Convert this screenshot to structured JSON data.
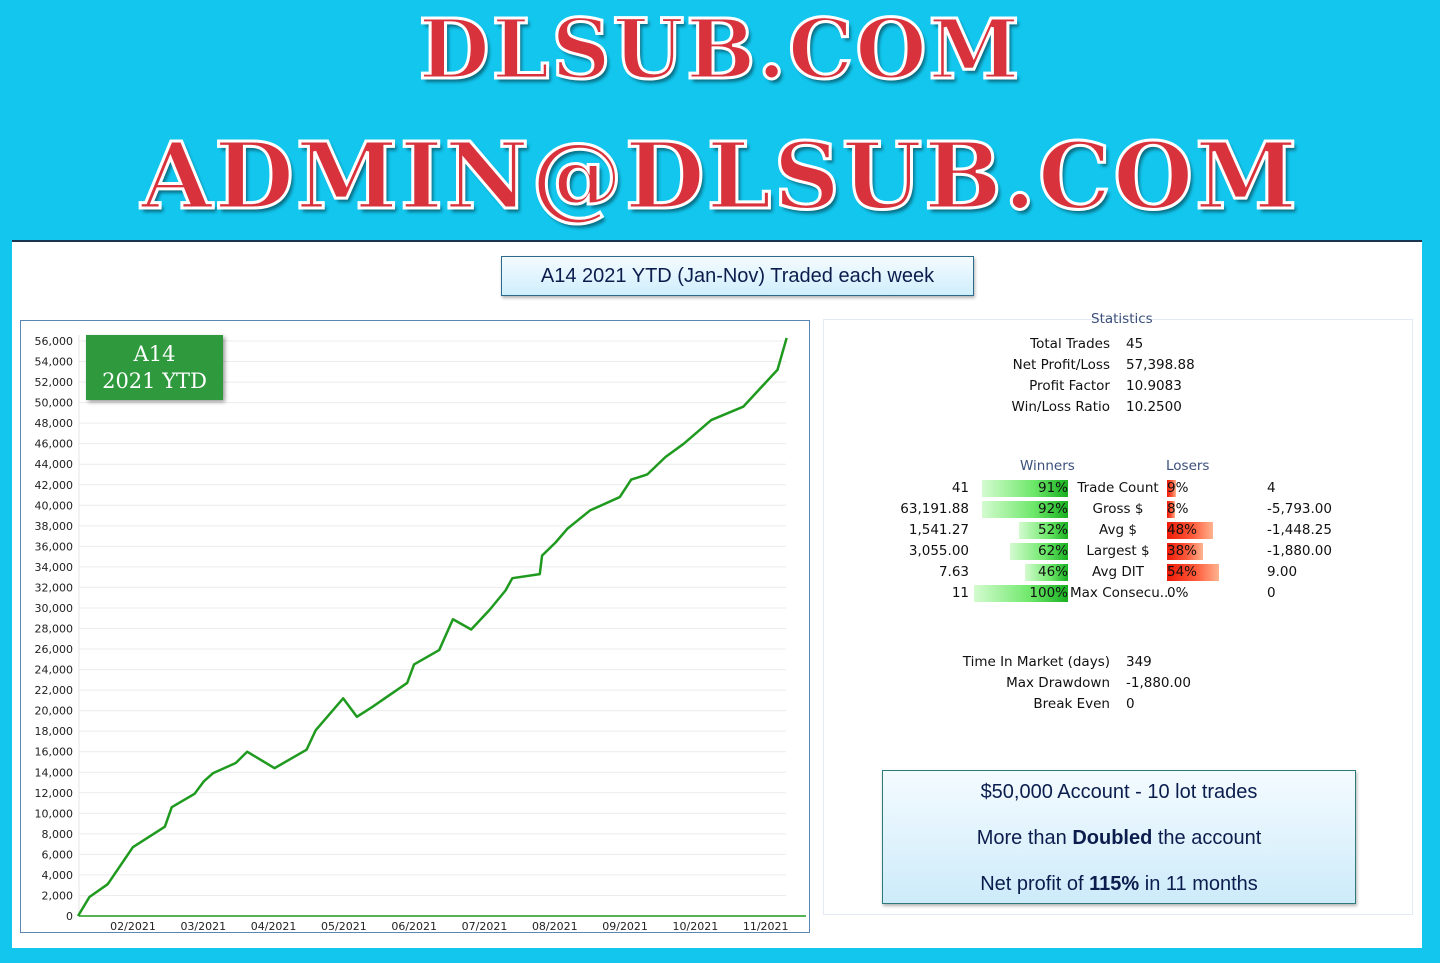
{
  "logo": {
    "line1": "DLSUB.COM",
    "line2": "ADMIN@DLSUB.COM"
  },
  "title": "A14 2021 YTD (Jan-Nov) Traded each week",
  "badge": {
    "line1": "A14",
    "line2": "2021 YTD"
  },
  "colors": {
    "line": "#1f9a1f",
    "badge": "#2f9a3d",
    "background": "#12c6ee",
    "logo_text": "#d8323c"
  },
  "chart_data": {
    "type": "line",
    "title": "",
    "xlabel": "",
    "ylabel": "",
    "ylim": [
      0,
      56000
    ],
    "yticks": [
      "0",
      "2,000",
      "4,000",
      "6,000",
      "8,000",
      "10,000",
      "12,000",
      "14,000",
      "16,000",
      "18,000",
      "20,000",
      "22,000",
      "24,000",
      "26,000",
      "28,000",
      "30,000",
      "32,000",
      "34,000",
      "36,000",
      "38,000",
      "40,000",
      "42,000",
      "44,000",
      "46,000",
      "48,000",
      "50,000",
      "52,000",
      "54,000",
      "56,000"
    ],
    "xticks": [
      "02/2021",
      "03/2021",
      "04/2021",
      "05/2021",
      "06/2021",
      "07/2021",
      "08/2021",
      "09/2021",
      "10/2021",
      "11/2021"
    ],
    "grid": true,
    "x": [
      "2021-01-08",
      "2021-01-13",
      "2021-01-21",
      "2021-02-01",
      "2021-02-15",
      "2021-02-18",
      "2021-02-28",
      "2021-03-04",
      "2021-03-08",
      "2021-03-18",
      "2021-03-23",
      "2021-04-04",
      "2021-04-18",
      "2021-04-22",
      "2021-05-04",
      "2021-05-10",
      "2021-05-17",
      "2021-06-01",
      "2021-06-04",
      "2021-06-15",
      "2021-06-21",
      "2021-06-29",
      "2021-07-07",
      "2021-07-14",
      "2021-07-17",
      "2021-07-29",
      "2021-07-30",
      "2021-08-05",
      "2021-08-10",
      "2021-08-20",
      "2021-09-02",
      "2021-09-07",
      "2021-09-14",
      "2021-09-22",
      "2021-09-30",
      "2021-10-12",
      "2021-10-26",
      "2021-11-10",
      "2021-11-14"
    ],
    "y": [
      0,
      1850,
      3100,
      6700,
      8700,
      10600,
      11900,
      13100,
      13900,
      14900,
      16000,
      14400,
      16200,
      18100,
      21200,
      19400,
      20400,
      22700,
      24500,
      25900,
      28900,
      27900,
      29800,
      31700,
      32900,
      33300,
      35100,
      36400,
      37700,
      39500,
      40800,
      42500,
      43000,
      44700,
      46000,
      48300,
      49600,
      53200,
      56300
    ]
  },
  "stats": {
    "heading": "Statistics",
    "summary": [
      {
        "label": "Total Trades",
        "value": "45"
      },
      {
        "label": "Net Profit/Loss",
        "value": "57,398.88"
      },
      {
        "label": "Profit Factor",
        "value": "10.9083"
      },
      {
        "label": "Win/Loss Ratio",
        "value": "10.2500"
      }
    ],
    "winners_label": "Winners",
    "losers_label": "Losers",
    "rows": [
      {
        "label": "Trade Count",
        "win": "41",
        "win_pct": "91%",
        "win_frac": 0.91,
        "loss_pct": "9%",
        "loss_frac": 0.09,
        "loss": "4"
      },
      {
        "label": "Gross $",
        "win": "63,191.88",
        "win_pct": "92%",
        "win_frac": 0.92,
        "loss_pct": "8%",
        "loss_frac": 0.08,
        "loss": "-5,793.00"
      },
      {
        "label": "Avg $",
        "win": "1,541.27",
        "win_pct": "52%",
        "win_frac": 0.52,
        "loss_pct": "48%",
        "loss_frac": 0.48,
        "loss": "-1,448.25"
      },
      {
        "label": "Largest $",
        "win": "3,055.00",
        "win_pct": "62%",
        "win_frac": 0.62,
        "loss_pct": "38%",
        "loss_frac": 0.38,
        "loss": "-1,880.00"
      },
      {
        "label": "Avg DIT",
        "win": "7.63",
        "win_pct": "46%",
        "win_frac": 0.46,
        "loss_pct": "54%",
        "loss_frac": 0.54,
        "loss": "9.00"
      },
      {
        "label": "Max Consecu...",
        "win": "11",
        "win_pct": "100%",
        "win_frac": 1.0,
        "loss_pct": "0%",
        "loss_frac": 0,
        "loss": "0"
      }
    ],
    "other": [
      {
        "label": "Time In Market (days)",
        "value": "349"
      },
      {
        "label": "Max Drawdown",
        "value": "-1,880.00"
      },
      {
        "label": "Break Even",
        "value": "0"
      }
    ]
  },
  "note": {
    "line1": "$50,000 Account - 10 lot trades",
    "line2_pre": "More than ",
    "line2_bold": "Doubled",
    "line2_post": " the account",
    "line3_pre": "Net profit of ",
    "line3_bold": "115%",
    "line3_post": " in 11 months"
  }
}
